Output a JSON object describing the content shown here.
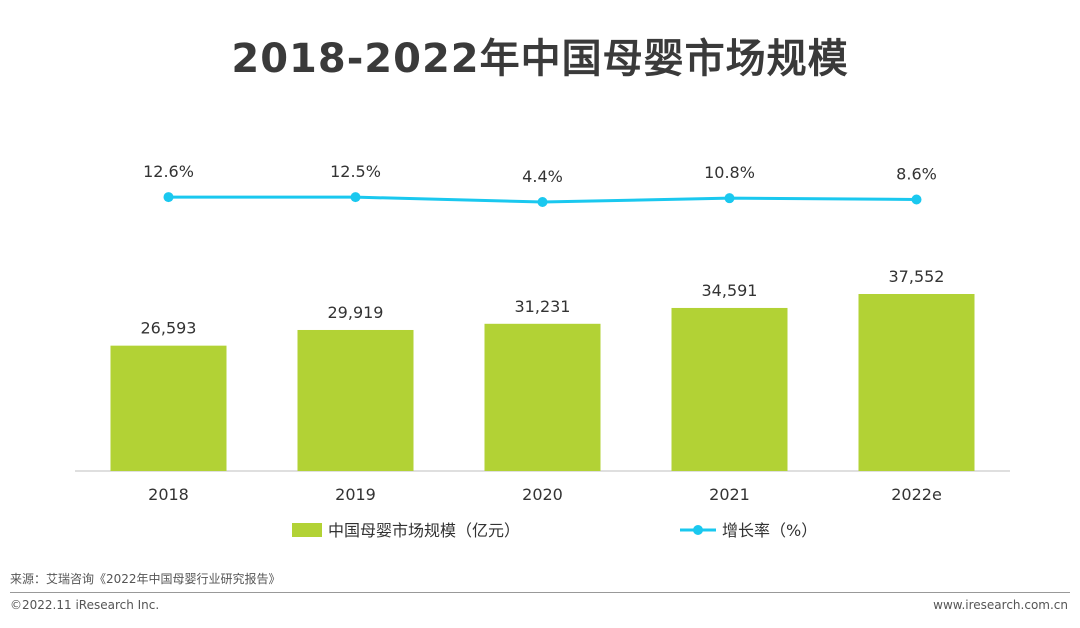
{
  "colors": {
    "bar": "#b2d235",
    "line": "#1ac8ef",
    "axis": "#bfbfbf",
    "text": "#333333"
  },
  "chart_data": {
    "title": "2018-2022年中国母婴市场规模",
    "categories": [
      "2018",
      "2019",
      "2020",
      "2021",
      "2022e"
    ],
    "series": [
      {
        "name": "中国母婴市场规模（亿元）",
        "type": "bar",
        "values": [
          26593,
          29919,
          31231,
          34591,
          37552
        ],
        "labels": [
          "26,593",
          "29,919",
          "31,231",
          "34,591",
          "37,552"
        ]
      },
      {
        "name": "增长率（%）",
        "type": "line",
        "values": [
          12.6,
          12.5,
          4.4,
          10.8,
          8.6
        ],
        "labels": [
          "12.6%",
          "12.5%",
          "4.4%",
          "10.8%",
          "8.6%"
        ]
      }
    ],
    "legend": "bottom"
  },
  "footer": {
    "source": "来源：艾瑞咨询《2022年中国母婴行业研究报告》",
    "copyright": "©2022.11 iResearch Inc.",
    "website": "www.iresearch.com.cn"
  }
}
